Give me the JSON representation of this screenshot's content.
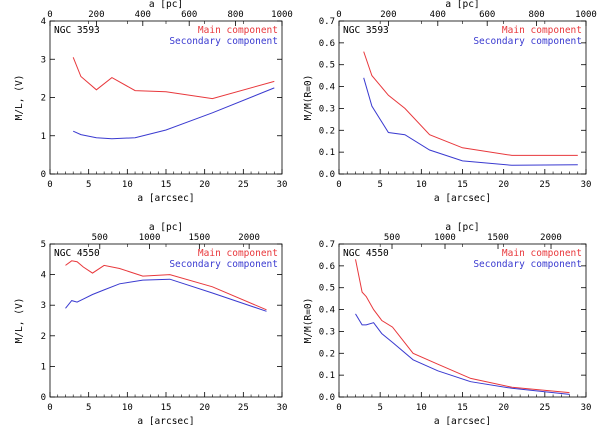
{
  "colors": {
    "main": "#e8383c",
    "secondary": "#3a3ad0",
    "axis": "#000000"
  },
  "chart_data": [
    {
      "type": "line",
      "panel_label": "NGC 3593",
      "xlabel": "a [arcsec]",
      "xlabel_top": "a [pc]",
      "ylabel": "M/L, (V)",
      "xlim": [
        0,
        30
      ],
      "ylim": [
        0,
        4
      ],
      "top_xlim": [
        0,
        1000
      ],
      "x_ticks": [
        0,
        5,
        10,
        15,
        20,
        25,
        30
      ],
      "y_ticks": [
        0,
        1,
        2,
        3,
        4
      ],
      "top_ticks": [
        0,
        200,
        400,
        600,
        800,
        1000
      ],
      "series": [
        {
          "name": "Main component",
          "color": "#e8383c",
          "x": [
            3,
            4,
            6,
            8,
            11,
            15,
            21,
            29
          ],
          "y": [
            3.05,
            2.55,
            2.2,
            2.52,
            2.18,
            2.15,
            1.97,
            2.42
          ]
        },
        {
          "name": "Secondary component",
          "color": "#3a3ad0",
          "x": [
            3,
            4,
            6,
            8,
            11,
            15,
            21,
            29
          ],
          "y": [
            1.12,
            1.03,
            0.95,
            0.92,
            0.95,
            1.15,
            1.6,
            2.25
          ]
        }
      ]
    },
    {
      "type": "line",
      "panel_label": "NGC 3593",
      "xlabel": "a [arcsec]",
      "xlabel_top": "a [pc]",
      "ylabel": "M/M(R=0)",
      "xlim": [
        0,
        30
      ],
      "ylim": [
        0,
        0.7
      ],
      "top_xlim": [
        0,
        1000
      ],
      "x_ticks": [
        0,
        5,
        10,
        15,
        20,
        25,
        30
      ],
      "y_ticks": [
        0.0,
        0.1,
        0.2,
        0.3,
        0.4,
        0.5,
        0.6,
        0.7
      ],
      "top_ticks": [
        0,
        200,
        400,
        600,
        800,
        1000
      ],
      "series": [
        {
          "name": "Main component",
          "color": "#e8383c",
          "x": [
            3,
            4,
            6,
            8,
            11,
            15,
            21,
            29
          ],
          "y": [
            0.56,
            0.45,
            0.36,
            0.3,
            0.18,
            0.12,
            0.085,
            0.085
          ]
        },
        {
          "name": "Secondary component",
          "color": "#3a3ad0",
          "x": [
            3,
            4,
            6,
            8,
            11,
            15,
            21,
            29
          ],
          "y": [
            0.44,
            0.31,
            0.19,
            0.18,
            0.11,
            0.06,
            0.04,
            0.042
          ]
        }
      ]
    },
    {
      "type": "line",
      "panel_label": "NGC 4550",
      "xlabel": "a [arcsec]",
      "xlabel_top": "a [pc]",
      "ylabel": "M/L, (V)",
      "xlim": [
        0,
        30
      ],
      "ylim": [
        0,
        5
      ],
      "top_xlim": [
        0,
        2330
      ],
      "x_ticks": [
        0,
        5,
        10,
        15,
        20,
        25,
        30
      ],
      "y_ticks": [
        0,
        1,
        2,
        3,
        4,
        5
      ],
      "top_ticks": [
        500,
        1000,
        1500,
        2000
      ],
      "series": [
        {
          "name": "Main component",
          "color": "#e8383c",
          "x": [
            2,
            2.8,
            3.5,
            4.3,
            5.5,
            7,
            9,
            12,
            15.5,
            21,
            28
          ],
          "y": [
            4.3,
            4.45,
            4.42,
            4.25,
            4.05,
            4.3,
            4.2,
            3.95,
            4.0,
            3.6,
            2.85
          ]
        },
        {
          "name": "Secondary component",
          "color": "#3a3ad0",
          "x": [
            2,
            2.8,
            3.5,
            4.3,
            5.5,
            7,
            9,
            12,
            15.5,
            21,
            28
          ],
          "y": [
            2.9,
            3.15,
            3.1,
            3.2,
            3.35,
            3.5,
            3.7,
            3.82,
            3.85,
            3.4,
            2.8
          ]
        }
      ]
    },
    {
      "type": "line",
      "panel_label": "NGC 4550",
      "xlabel": "a [arcsec]",
      "xlabel_top": "a [pc]",
      "ylabel": "M/M(R=0)",
      "xlim": [
        0,
        30
      ],
      "ylim": [
        0,
        0.7
      ],
      "top_xlim": [
        0,
        2330
      ],
      "x_ticks": [
        0,
        5,
        10,
        15,
        20,
        25,
        30
      ],
      "y_ticks": [
        0.0,
        0.1,
        0.2,
        0.3,
        0.4,
        0.5,
        0.6,
        0.7
      ],
      "top_ticks": [
        500,
        1000,
        1500,
        2000
      ],
      "series": [
        {
          "name": "Main component",
          "color": "#e8383c",
          "x": [
            2,
            2.8,
            3.3,
            4.2,
            5.2,
            6.5,
            9,
            12,
            16,
            21,
            28
          ],
          "y": [
            0.63,
            0.48,
            0.46,
            0.4,
            0.35,
            0.32,
            0.2,
            0.15,
            0.085,
            0.045,
            0.02
          ]
        },
        {
          "name": "Secondary component",
          "color": "#3a3ad0",
          "x": [
            2,
            2.8,
            3.3,
            4.2,
            5.2,
            6.5,
            9,
            12,
            16,
            21,
            28
          ],
          "y": [
            0.38,
            0.33,
            0.33,
            0.34,
            0.29,
            0.25,
            0.17,
            0.12,
            0.07,
            0.04,
            0.012
          ]
        }
      ]
    }
  ]
}
